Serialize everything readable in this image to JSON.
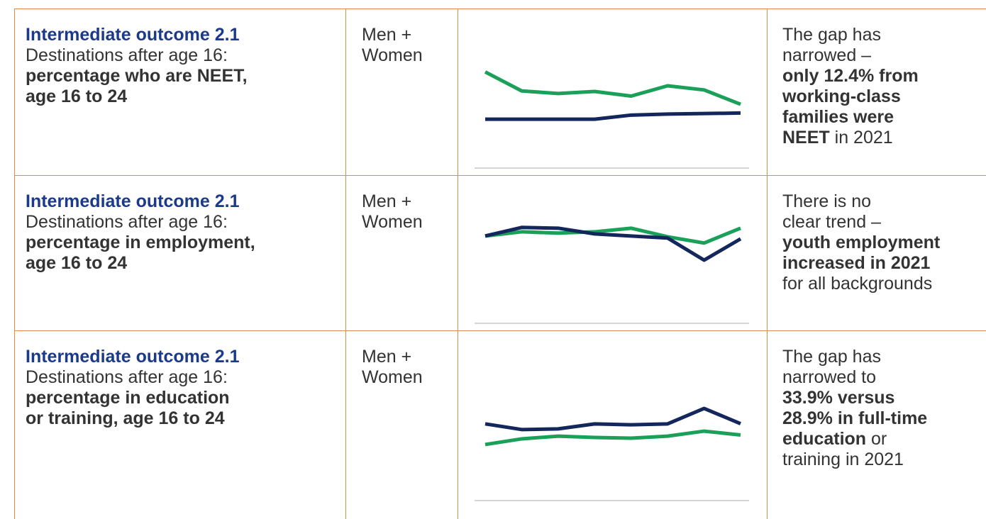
{
  "table": {
    "rows": [
      {
        "outcome": "Intermediate outcome 2.1",
        "description": "Destinations after age 16:",
        "measure": [
          "percentage who are NEET,",
          "age 16 to 24"
        ],
        "group": "Men + Women",
        "chart": {
          "type": "line",
          "ylim": [
            0,
            20
          ],
          "series": [
            {
              "color": "#1ba05a",
              "values": [
                18.7,
                15.0,
                14.5,
                14.9,
                14.0,
                16.0,
                15.2,
                12.4
              ]
            },
            {
              "color": "#14275c",
              "values": [
                9.5,
                9.5,
                9.5,
                9.5,
                10.3,
                10.5,
                10.6,
                10.7
              ]
            }
          ]
        },
        "finding": [
          [
            {
              "text": "The gap has",
              "bold": false
            }
          ],
          [
            {
              "text": "narrowed –",
              "bold": false
            }
          ],
          [
            {
              "text": "only 12.4% from",
              "bold": true
            }
          ],
          [
            {
              "text": "working-class",
              "bold": true
            }
          ],
          [
            {
              "text": "families were",
              "bold": true
            }
          ],
          [
            {
              "text": "NEET",
              "bold": true
            },
            {
              "text": " in 2021",
              "bold": false
            }
          ]
        ]
      },
      {
        "outcome": "Intermediate outcome 2.1",
        "description": "Destinations after age 16:",
        "measure": [
          "percentage in employment,",
          "age 16 to 24"
        ],
        "group": "Men + Women",
        "chart": {
          "type": "line",
          "ylim": [
            0,
            60
          ],
          "series": [
            {
              "color": "#1ba05a",
              "values": [
                45.9,
                48.1,
                47.4,
                48.1,
                50.0,
                45.5,
                42.2,
                50.0
              ]
            },
            {
              "color": "#14275c",
              "values": [
                45.9,
                50.4,
                50.0,
                47.0,
                45.9,
                44.8,
                33.2,
                44.4
              ]
            }
          ]
        },
        "finding": [
          [
            {
              "text": "There is no",
              "bold": false
            }
          ],
          [
            {
              "text": "clear trend –",
              "bold": false
            }
          ],
          [
            {
              "text": "youth employment",
              "bold": true
            }
          ],
          [
            {
              "text": "increased in 2021",
              "bold": true
            }
          ],
          [
            {
              "text": "for all backgrounds",
              "bold": false
            }
          ]
        ]
      },
      {
        "outcome": "Intermediate outcome 2.1",
        "description": "Destinations after age 16:",
        "measure": [
          "percentage in education",
          "or training, age 16 to 24"
        ],
        "group": "Men + Women",
        "chart": {
          "type": "line",
          "ylim": [
            0,
            45
          ],
          "series": [
            {
              "color": "#1ba05a",
              "values": [
                24.7,
                27.2,
                28.4,
                27.8,
                27.5,
                28.4,
                30.6,
                28.9
              ]
            },
            {
              "color": "#14275c",
              "values": [
                33.8,
                31.3,
                31.6,
                33.8,
                33.4,
                33.8,
                40.6,
                33.9
              ]
            }
          ]
        },
        "finding": [
          [
            {
              "text": "The gap has",
              "bold": false
            }
          ],
          [
            {
              "text": "narrowed to",
              "bold": false
            }
          ],
          [
            {
              "text": "33.9% versus",
              "bold": true
            }
          ],
          [
            {
              "text": "28.9% in full-time",
              "bold": true
            }
          ],
          [
            {
              "text": "education",
              "bold": true
            },
            {
              "text": " or",
              "bold": false
            }
          ],
          [
            {
              "text": "training in 2021",
              "bold": false
            }
          ]
        ]
      }
    ]
  }
}
